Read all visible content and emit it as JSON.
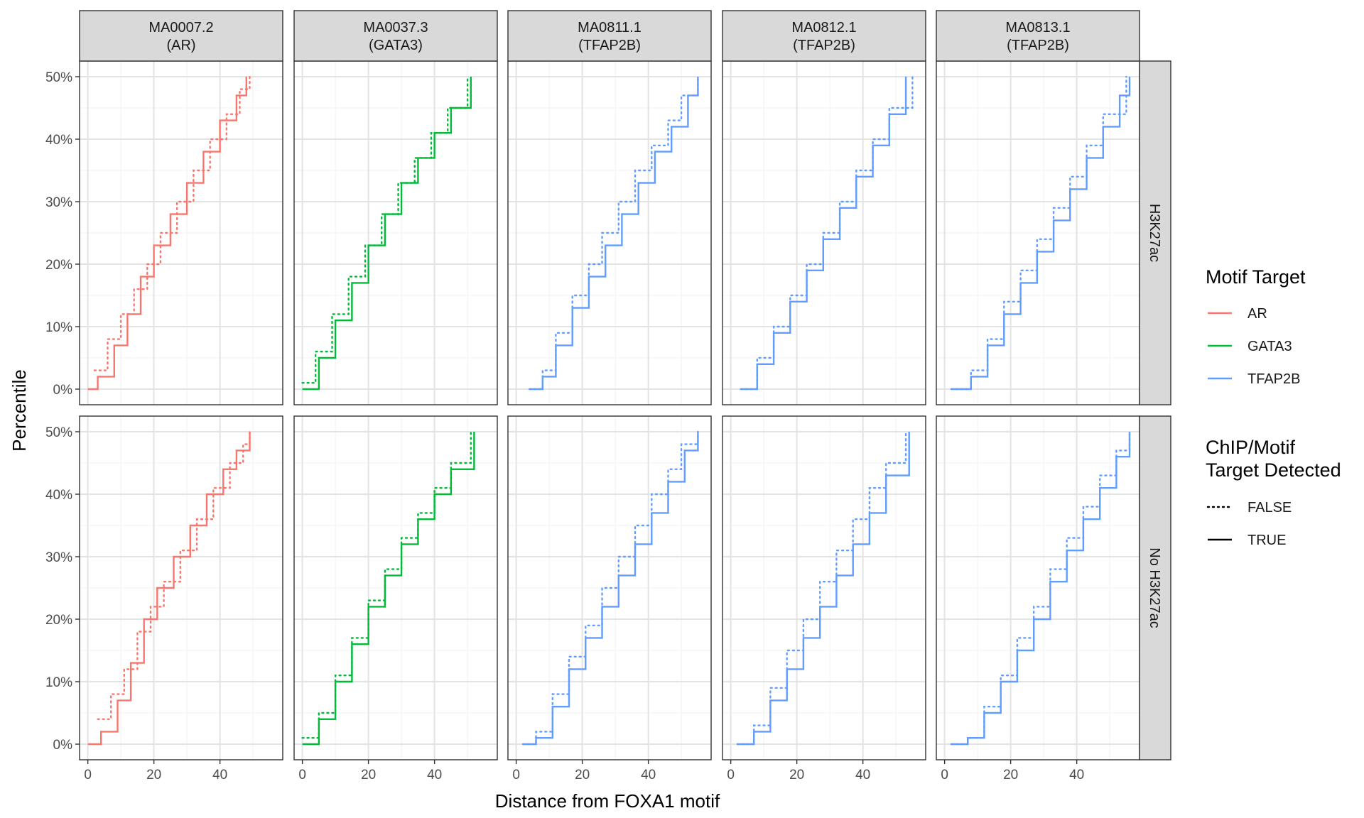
{
  "chart_data": {
    "type": "line",
    "subtype": "step (empirical cumulative distribution)",
    "xlabel": "Distance from FOXA1 motif",
    "ylabel": "Percentile",
    "xlim": [
      -2.5,
      59
    ],
    "ylim": [
      -2.5,
      52.5
    ],
    "x_ticks": [
      0,
      20,
      40
    ],
    "y_ticks": [
      0,
      10,
      20,
      30,
      40,
      50
    ],
    "y_tick_labels": [
      "0%",
      "10%",
      "20%",
      "30%",
      "40%",
      "50%"
    ],
    "grid": true,
    "legend_position": "right",
    "columns": [
      {
        "title": "MA0007.2\n(AR)",
        "line1": "MA0007.2",
        "line2": "(AR)",
        "target": "AR"
      },
      {
        "title": "MA0037.3\n(GATA3)",
        "line1": "MA0037.3",
        "line2": "(GATA3)",
        "target": "GATA3"
      },
      {
        "title": "MA0811.1\n(TFAP2B)",
        "line1": "MA0811.1",
        "line2": "(TFAP2B)",
        "target": "TFAP2B"
      },
      {
        "title": "MA0812.1\n(TFAP2B)",
        "line1": "MA0812.1",
        "line2": "(TFAP2B)",
        "target": "TFAP2B"
      },
      {
        "title": "MA0813.1\n(TFAP2B)",
        "line1": "MA0813.1",
        "line2": "(TFAP2B)",
        "target": "TFAP2B"
      }
    ],
    "rows": [
      "H3K27ac",
      "No H3K27ac"
    ],
    "colors": {
      "AR": "#F8766D",
      "GATA3": "#00BA38",
      "TFAP2B": "#619CFF"
    },
    "panels": [
      {
        "column": 0,
        "row": 0,
        "series": [
          {
            "detected": "TRUE",
            "x": [
              0,
              3,
              8,
              12,
              16,
              20,
              25,
              30,
              35,
              40,
              45,
              48
            ],
            "y": [
              0,
              2,
              7,
              12,
              18,
              23,
              28,
              33,
              38,
              43,
              47,
              50
            ]
          },
          {
            "detected": "FALSE",
            "x": [
              2,
              6,
              10,
              14,
              18,
              22,
              27,
              32,
              37,
              42,
              46,
              49
            ],
            "y": [
              3,
              8,
              12,
              16,
              20,
              25,
              30,
              35,
              40,
              44,
              48,
              50
            ]
          }
        ]
      },
      {
        "column": 1,
        "row": 0,
        "series": [
          {
            "detected": "TRUE",
            "x": [
              0,
              5,
              10,
              15,
              20,
              25,
              30,
              35,
              40,
              45,
              51
            ],
            "y": [
              0,
              5,
              11,
              17,
              23,
              28,
              33,
              37,
              41,
              45,
              50
            ]
          },
          {
            "detected": "FALSE",
            "x": [
              0,
              4,
              9,
              14,
              19,
              24,
              29,
              34,
              39,
              44,
              50
            ],
            "y": [
              1,
              6,
              12,
              18,
              23,
              28,
              33,
              37,
              41,
              45,
              50
            ]
          }
        ]
      },
      {
        "column": 2,
        "row": 0,
        "series": [
          {
            "detected": "TRUE",
            "x": [
              4,
              8,
              12,
              17,
              22,
              27,
              32,
              37,
              42,
              47,
              52,
              55
            ],
            "y": [
              0,
              2,
              7,
              13,
              18,
              23,
              28,
              33,
              38,
              42,
              47,
              50
            ]
          },
          {
            "detected": "FALSE",
            "x": [
              4,
              8,
              12,
              17,
              22,
              26,
              31,
              36,
              41,
              46,
              50,
              55
            ],
            "y": [
              0,
              3,
              9,
              15,
              20,
              25,
              30,
              35,
              39,
              43,
              47,
              50
            ]
          }
        ]
      },
      {
        "column": 3,
        "row": 0,
        "series": [
          {
            "detected": "TRUE",
            "x": [
              3,
              8,
              13,
              18,
              23,
              28,
              33,
              38,
              43,
              48,
              53
            ],
            "y": [
              0,
              4,
              9,
              14,
              19,
              24,
              29,
              34,
              39,
              44,
              50
            ]
          },
          {
            "detected": "FALSE",
            "x": [
              3,
              8,
              13,
              18,
              23,
              28,
              33,
              38,
              43,
              48,
              55
            ],
            "y": [
              0,
              5,
              10,
              15,
              20,
              25,
              30,
              35,
              40,
              45,
              50
            ]
          }
        ]
      },
      {
        "column": 4,
        "row": 0,
        "series": [
          {
            "detected": "TRUE",
            "x": [
              2,
              8,
              13,
              18,
              23,
              28,
              33,
              38,
              43,
              48,
              53,
              56
            ],
            "y": [
              0,
              2,
              7,
              12,
              17,
              22,
              27,
              32,
              37,
              42,
              47,
              50
            ]
          },
          {
            "detected": "FALSE",
            "x": [
              2,
              8,
              13,
              18,
              23,
              28,
              33,
              38,
              43,
              48,
              55
            ],
            "y": [
              0,
              3,
              8,
              14,
              19,
              24,
              29,
              34,
              39,
              44,
              50
            ]
          }
        ]
      },
      {
        "column": 0,
        "row": 1,
        "series": [
          {
            "detected": "TRUE",
            "x": [
              0,
              4,
              9,
              13,
              17,
              21,
              26,
              31,
              36,
              41,
              45,
              49
            ],
            "y": [
              0,
              2,
              7,
              13,
              20,
              25,
              30,
              35,
              40,
              44,
              47,
              50
            ]
          },
          {
            "detected": "FALSE",
            "x": [
              3,
              7,
              11,
              15,
              19,
              23,
              28,
              33,
              38,
              43,
              47,
              49
            ],
            "y": [
              4,
              8,
              12,
              18,
              22,
              26,
              31,
              36,
              41,
              45,
              48,
              50
            ]
          }
        ]
      },
      {
        "column": 1,
        "row": 1,
        "series": [
          {
            "detected": "TRUE",
            "x": [
              0,
              5,
              10,
              15,
              20,
              25,
              30,
              35,
              40,
              45,
              52
            ],
            "y": [
              0,
              4,
              10,
              16,
              22,
              27,
              32,
              36,
              40,
              44,
              50
            ]
          },
          {
            "detected": "FALSE",
            "x": [
              0,
              5,
              10,
              15,
              20,
              25,
              30,
              35,
              40,
              45,
              51
            ],
            "y": [
              1,
              5,
              11,
              17,
              23,
              28,
              33,
              37,
              41,
              45,
              50
            ]
          }
        ]
      },
      {
        "column": 2,
        "row": 1,
        "series": [
          {
            "detected": "TRUE",
            "x": [
              2,
              6,
              11,
              16,
              21,
              26,
              31,
              36,
              41,
              46,
              51,
              55
            ],
            "y": [
              0,
              1,
              6,
              12,
              17,
              22,
              27,
              32,
              37,
              42,
              47,
              50
            ]
          },
          {
            "detected": "FALSE",
            "x": [
              2,
              6,
              11,
              16,
              21,
              26,
              31,
              36,
              41,
              46,
              50,
              55
            ],
            "y": [
              0,
              2,
              8,
              14,
              19,
              25,
              30,
              35,
              40,
              44,
              48,
              50
            ]
          }
        ]
      },
      {
        "column": 3,
        "row": 1,
        "series": [
          {
            "detected": "TRUE",
            "x": [
              2,
              7,
              12,
              17,
              22,
              27,
              32,
              37,
              42,
              47,
              54
            ],
            "y": [
              0,
              2,
              7,
              12,
              17,
              22,
              27,
              32,
              37,
              43,
              50
            ]
          },
          {
            "detected": "FALSE",
            "x": [
              2,
              7,
              12,
              17,
              22,
              27,
              32,
              37,
              42,
              47,
              53
            ],
            "y": [
              0,
              3,
              9,
              15,
              20,
              26,
              31,
              36,
              41,
              45,
              50
            ]
          }
        ]
      },
      {
        "column": 4,
        "row": 1,
        "series": [
          {
            "detected": "TRUE",
            "x": [
              2,
              7,
              12,
              17,
              22,
              27,
              32,
              37,
              42,
              47,
              52,
              56
            ],
            "y": [
              0,
              1,
              5,
              10,
              15,
              20,
              26,
              31,
              36,
              41,
              46,
              50
            ]
          },
          {
            "detected": "FALSE",
            "x": [
              2,
              7,
              12,
              17,
              22,
              27,
              32,
              37,
              42,
              47,
              52,
              56
            ],
            "y": [
              0,
              1,
              6,
              11,
              17,
              22,
              28,
              33,
              38,
              43,
              47,
              50
            ]
          }
        ]
      }
    ],
    "legend": {
      "color_title": "Motif Target",
      "color_items": [
        "AR",
        "GATA3",
        "TFAP2B"
      ],
      "linetype_title_line1": "ChIP/Motif",
      "linetype_title_line2": "Target Detected",
      "linetype_items": [
        {
          "label": "FALSE",
          "linetype": "dotted"
        },
        {
          "label": "TRUE",
          "linetype": "solid"
        }
      ]
    }
  }
}
